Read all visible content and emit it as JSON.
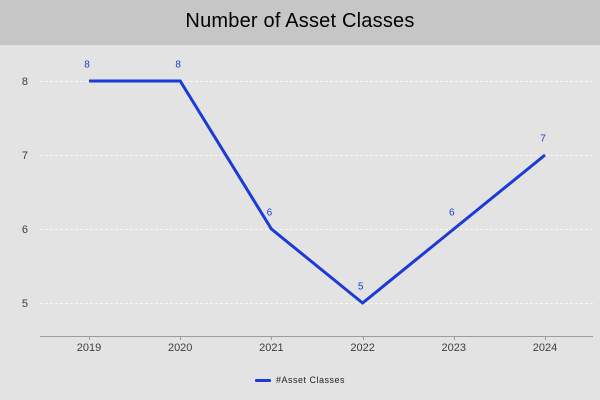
{
  "title": "Number of Asset Classes",
  "legend": {
    "label": "#Asset Classes"
  },
  "chart_data": {
    "type": "line",
    "title": "Number of Asset Classes",
    "categories": [
      "2019",
      "2020",
      "2021",
      "2022",
      "2023",
      "2024"
    ],
    "series": [
      {
        "name": "#Asset Classes",
        "values": [
          8,
          8,
          6,
          5,
          6,
          7
        ]
      }
    ],
    "xlabel": "",
    "ylabel": "",
    "yticks": [
      8,
      7,
      6,
      5
    ],
    "ylim": [
      4.5,
      8.5
    ],
    "grid": "horizontal-dashed",
    "data_labels": true,
    "legend_position": "bottom",
    "colors": {
      "line": "#1b3ad6",
      "data_label": "#1b3ad6",
      "title_bar_bg": "#c6c6c6",
      "plot_bg": "#e3e3e3",
      "gridline": "#f6f6f6",
      "axis": "#9c9c9c",
      "tick_label": "#3d3d3d",
      "title_text": "#000000"
    }
  }
}
